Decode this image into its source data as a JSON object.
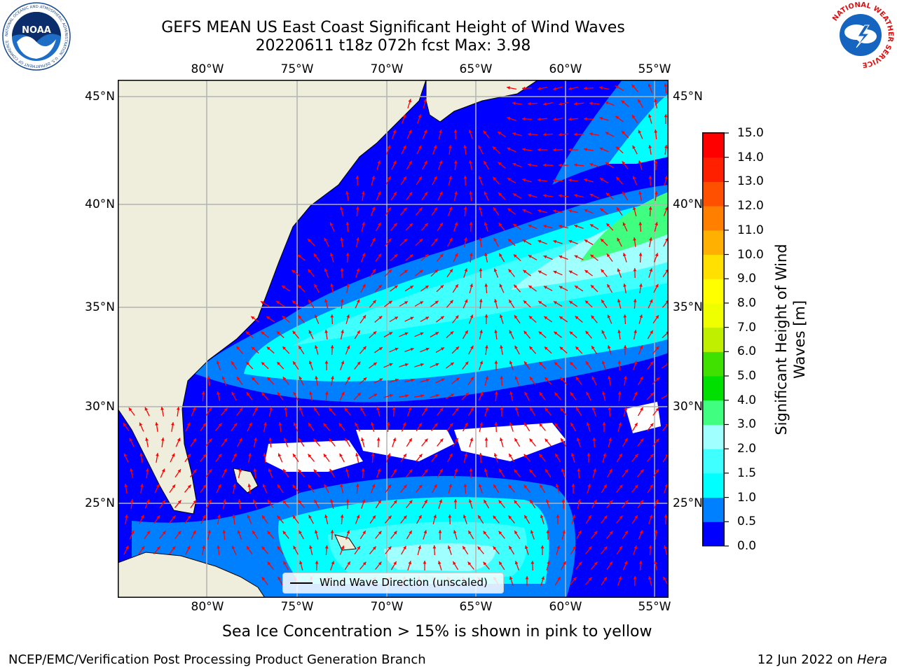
{
  "title": {
    "line1": "GEFS MEAN US East Coast Significant Height of Wind Waves",
    "line2": "20220611 t18z 072h fcst   Max: 3.98"
  },
  "map": {
    "lon_ticks": [
      "80°W",
      "75°W",
      "70°W",
      "65°W",
      "60°W",
      "55°W"
    ],
    "lat_ticks": [
      "45°N",
      "40°N",
      "35°N",
      "30°N",
      "25°N"
    ],
    "legend_label": "Wind Wave Direction (unscaled)",
    "colors": {
      "land": "#efeddb",
      "gridline": "#b3b3b3",
      "arrow": "#ff0000",
      "no_data": "#ffffff"
    }
  },
  "colorbar": {
    "title": "Significant Height of Wind Waves [m]",
    "ticks": [
      "0.0",
      "0.5",
      "1.0",
      "1.5",
      "2.0",
      "3.0",
      "4.0",
      "5.0",
      "6.0",
      "7.0",
      "8.0",
      "9.0",
      "10.0",
      "11.0",
      "12.0",
      "13.0",
      "14.0",
      "15.0"
    ],
    "colors": [
      "#0000ff",
      "#0080ff",
      "#00ffff",
      "#40ffff",
      "#a0ffff",
      "#40ff80",
      "#00e000",
      "#40e000",
      "#c0f000",
      "#f0ff00",
      "#ffff00",
      "#ffe000",
      "#ffb000",
      "#ff8000",
      "#ff5000",
      "#ff2000",
      "#ff0000"
    ]
  },
  "note": "Sea Ice Concentration > 15% is shown in pink to yellow",
  "footer": {
    "left": "NCEP/EMC/Verification Post Processing Product Generation Branch",
    "right_date": "12 Jun 2022 on ",
    "right_machine": "Hera"
  },
  "logos": {
    "noaa_text": "NOAA",
    "noaa_ring": "NATIONAL OCEANIC AND ATMOSPHERIC ADMINISTRATION · U.S. DEPARTMENT OF COMMERCE",
    "nws_ring": "NATIONAL WEATHER SERVICE"
  }
}
